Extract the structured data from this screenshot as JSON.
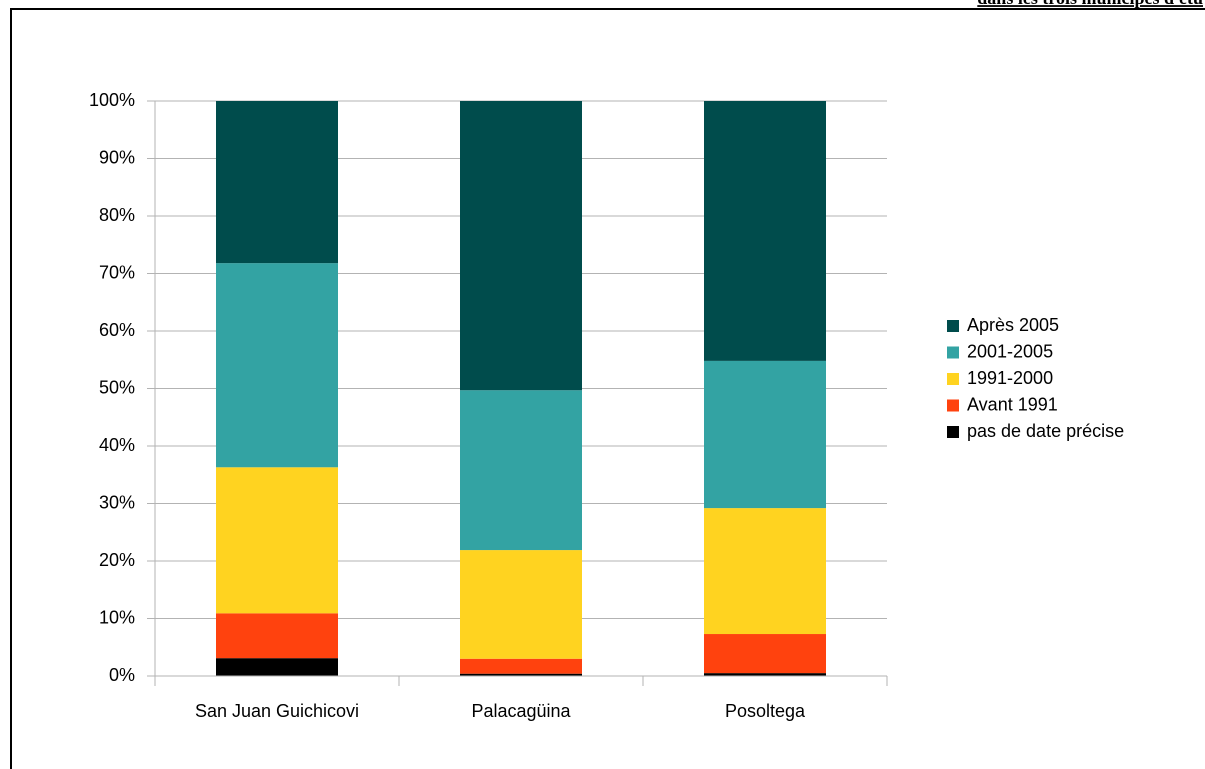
{
  "caption": "dans les trois municipes d'étu",
  "chart_data": {
    "type": "stacked_bar",
    "categories": [
      "San Juan Guichicovi",
      "Palacagüina",
      "Posoltega"
    ],
    "series": [
      {
        "name": "pas de date précise",
        "color": "#000000",
        "values": [
          3.1,
          0.4,
          0.5
        ]
      },
      {
        "name": "Avant 1991",
        "color": "#ff420e",
        "values": [
          7.8,
          2.6,
          6.8
        ]
      },
      {
        "name": "1991-2000",
        "color": "#ffd320",
        "values": [
          25.4,
          18.9,
          21.9
        ]
      },
      {
        "name": "2001-2005",
        "color": "#33a3a3",
        "values": [
          35.5,
          27.8,
          25.6
        ]
      },
      {
        "name": "Après 2005",
        "color": "#004c4c",
        "values": [
          28.2,
          50.3,
          45.2
        ]
      }
    ],
    "ylim": [
      0,
      100
    ],
    "yticks": [
      {
        "value": 0,
        "label": "0%"
      },
      {
        "value": 10,
        "label": "10%"
      },
      {
        "value": 20,
        "label": "20%"
      },
      {
        "value": 30,
        "label": "30%"
      },
      {
        "value": 40,
        "label": "40%"
      },
      {
        "value": 50,
        "label": "50%"
      },
      {
        "value": 60,
        "label": "60%"
      },
      {
        "value": 70,
        "label": "70%"
      },
      {
        "value": 80,
        "label": "80%"
      },
      {
        "value": 90,
        "label": "90%"
      },
      {
        "value": 100,
        "label": "100%"
      }
    ],
    "grid": true,
    "legend": "right"
  }
}
